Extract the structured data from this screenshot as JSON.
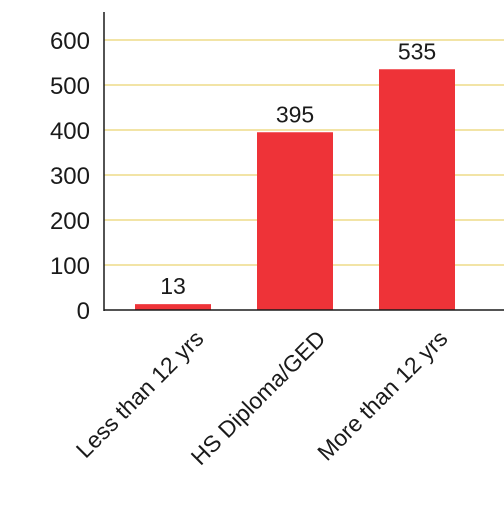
{
  "chart_data": {
    "type": "bar",
    "categories": [
      "Less than 12 yrs",
      "HS Diploma/GED",
      "More than 12 yrs"
    ],
    "values": [
      13,
      395,
      535
    ],
    "data_labels": [
      "13",
      "395",
      "535"
    ],
    "ylim": [
      0,
      600
    ],
    "yticks": [
      "0",
      "100",
      "200",
      "300",
      "400",
      "500",
      "600"
    ],
    "yticks_values": [
      0,
      100,
      200,
      300,
      400,
      500,
      600
    ],
    "grid": true,
    "title": "",
    "xlabel": "",
    "ylabel": "",
    "colors": {
      "bar": "#ee3338",
      "grid": "#e6c84c",
      "axis": "#1a1a1a"
    }
  }
}
